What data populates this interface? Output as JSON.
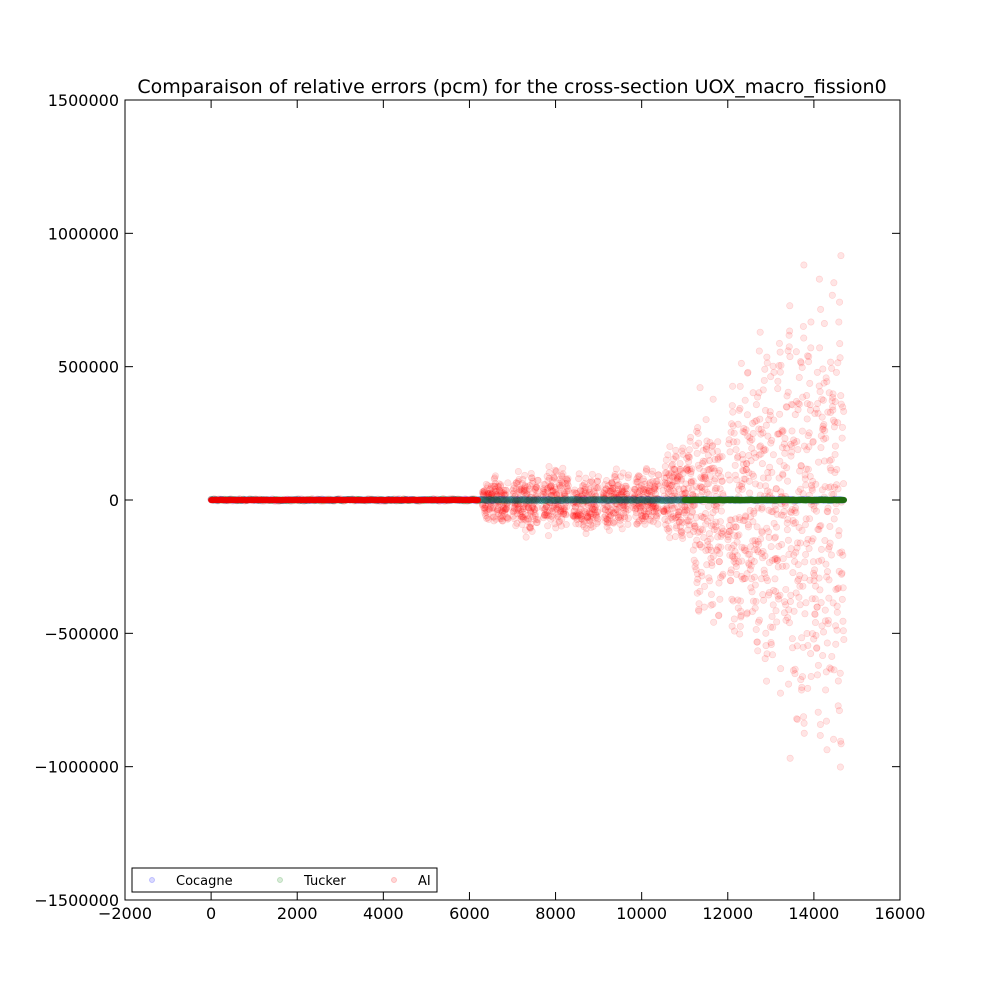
{
  "chart_data": {
    "type": "scatter",
    "title": "Comparaison of relative errors (pcm) for the cross-section UOX_macro_fission0",
    "xlabel": "",
    "ylabel": "",
    "xlim": [
      -2000,
      16000
    ],
    "ylim": [
      -1500000,
      1500000
    ],
    "x_ticks": [
      "−2000",
      "0",
      "2000",
      "4000",
      "6000",
      "8000",
      "10000",
      "12000",
      "14000",
      "16000"
    ],
    "y_ticks": [
      "1500000",
      "1000000",
      "500000",
      "0",
      "−500000",
      "−1000000",
      "−1500000"
    ],
    "grid": false,
    "legend_position": "lower-left",
    "legend": [
      {
        "name": "Cocagne",
        "color": "#0000ff"
      },
      {
        "name": "Tucker",
        "color": "#008000"
      },
      {
        "name": "AI",
        "color": "#ff0000"
      }
    ],
    "series": [
      {
        "name": "Cocagne",
        "color": "#0000ff",
        "alpha": 0.1,
        "description_points": [
          [
            0,
            0
          ],
          [
            14700,
            0
          ]
        ],
        "segments": [
          {
            "x_start": 0,
            "x_end": 14700,
            "y_min": -2000,
            "y_max": 2000
          }
        ]
      },
      {
        "name": "Tucker",
        "color": "#008000",
        "alpha": 0.1,
        "segments": [
          {
            "x_start": 0,
            "x_end": 14700,
            "y_min": -3000,
            "y_max": 3000
          }
        ]
      },
      {
        "name": "AI",
        "color": "#ff0000",
        "alpha": 0.1,
        "segments": [
          {
            "x_start": 0,
            "x_end": 6200,
            "y_min": -5000,
            "y_max": 5000
          },
          {
            "x_start": 6300,
            "x_end": 6900,
            "y_min": -100000,
            "y_max": 100000
          },
          {
            "x_start": 7000,
            "x_end": 7600,
            "y_min": -150000,
            "y_max": 130000
          },
          {
            "x_start": 7700,
            "x_end": 8300,
            "y_min": -150000,
            "y_max": 135000
          },
          {
            "x_start": 8400,
            "x_end": 9000,
            "y_min": -140000,
            "y_max": 120000
          },
          {
            "x_start": 9100,
            "x_end": 9700,
            "y_min": -140000,
            "y_max": 130000
          },
          {
            "x_start": 9800,
            "x_end": 10400,
            "y_min": -130000,
            "y_max": 130000
          },
          {
            "x_start": 10500,
            "x_end": 11200,
            "y_min": -180000,
            "y_max": 240000
          },
          {
            "x_start": 11200,
            "x_end": 11900,
            "y_min": -540000,
            "y_max": 430000
          },
          {
            "x_start": 12000,
            "x_end": 12600,
            "y_min": -620000,
            "y_max": 560000
          },
          {
            "x_start": 12600,
            "x_end": 13300,
            "y_min": -800000,
            "y_max": 740000
          },
          {
            "x_start": 13300,
            "x_end": 14000,
            "y_min": -1050000,
            "y_max": 950000
          },
          {
            "x_start": 14000,
            "x_end": 14700,
            "y_min": -1110000,
            "y_max": 1000000
          }
        ]
      }
    ]
  }
}
